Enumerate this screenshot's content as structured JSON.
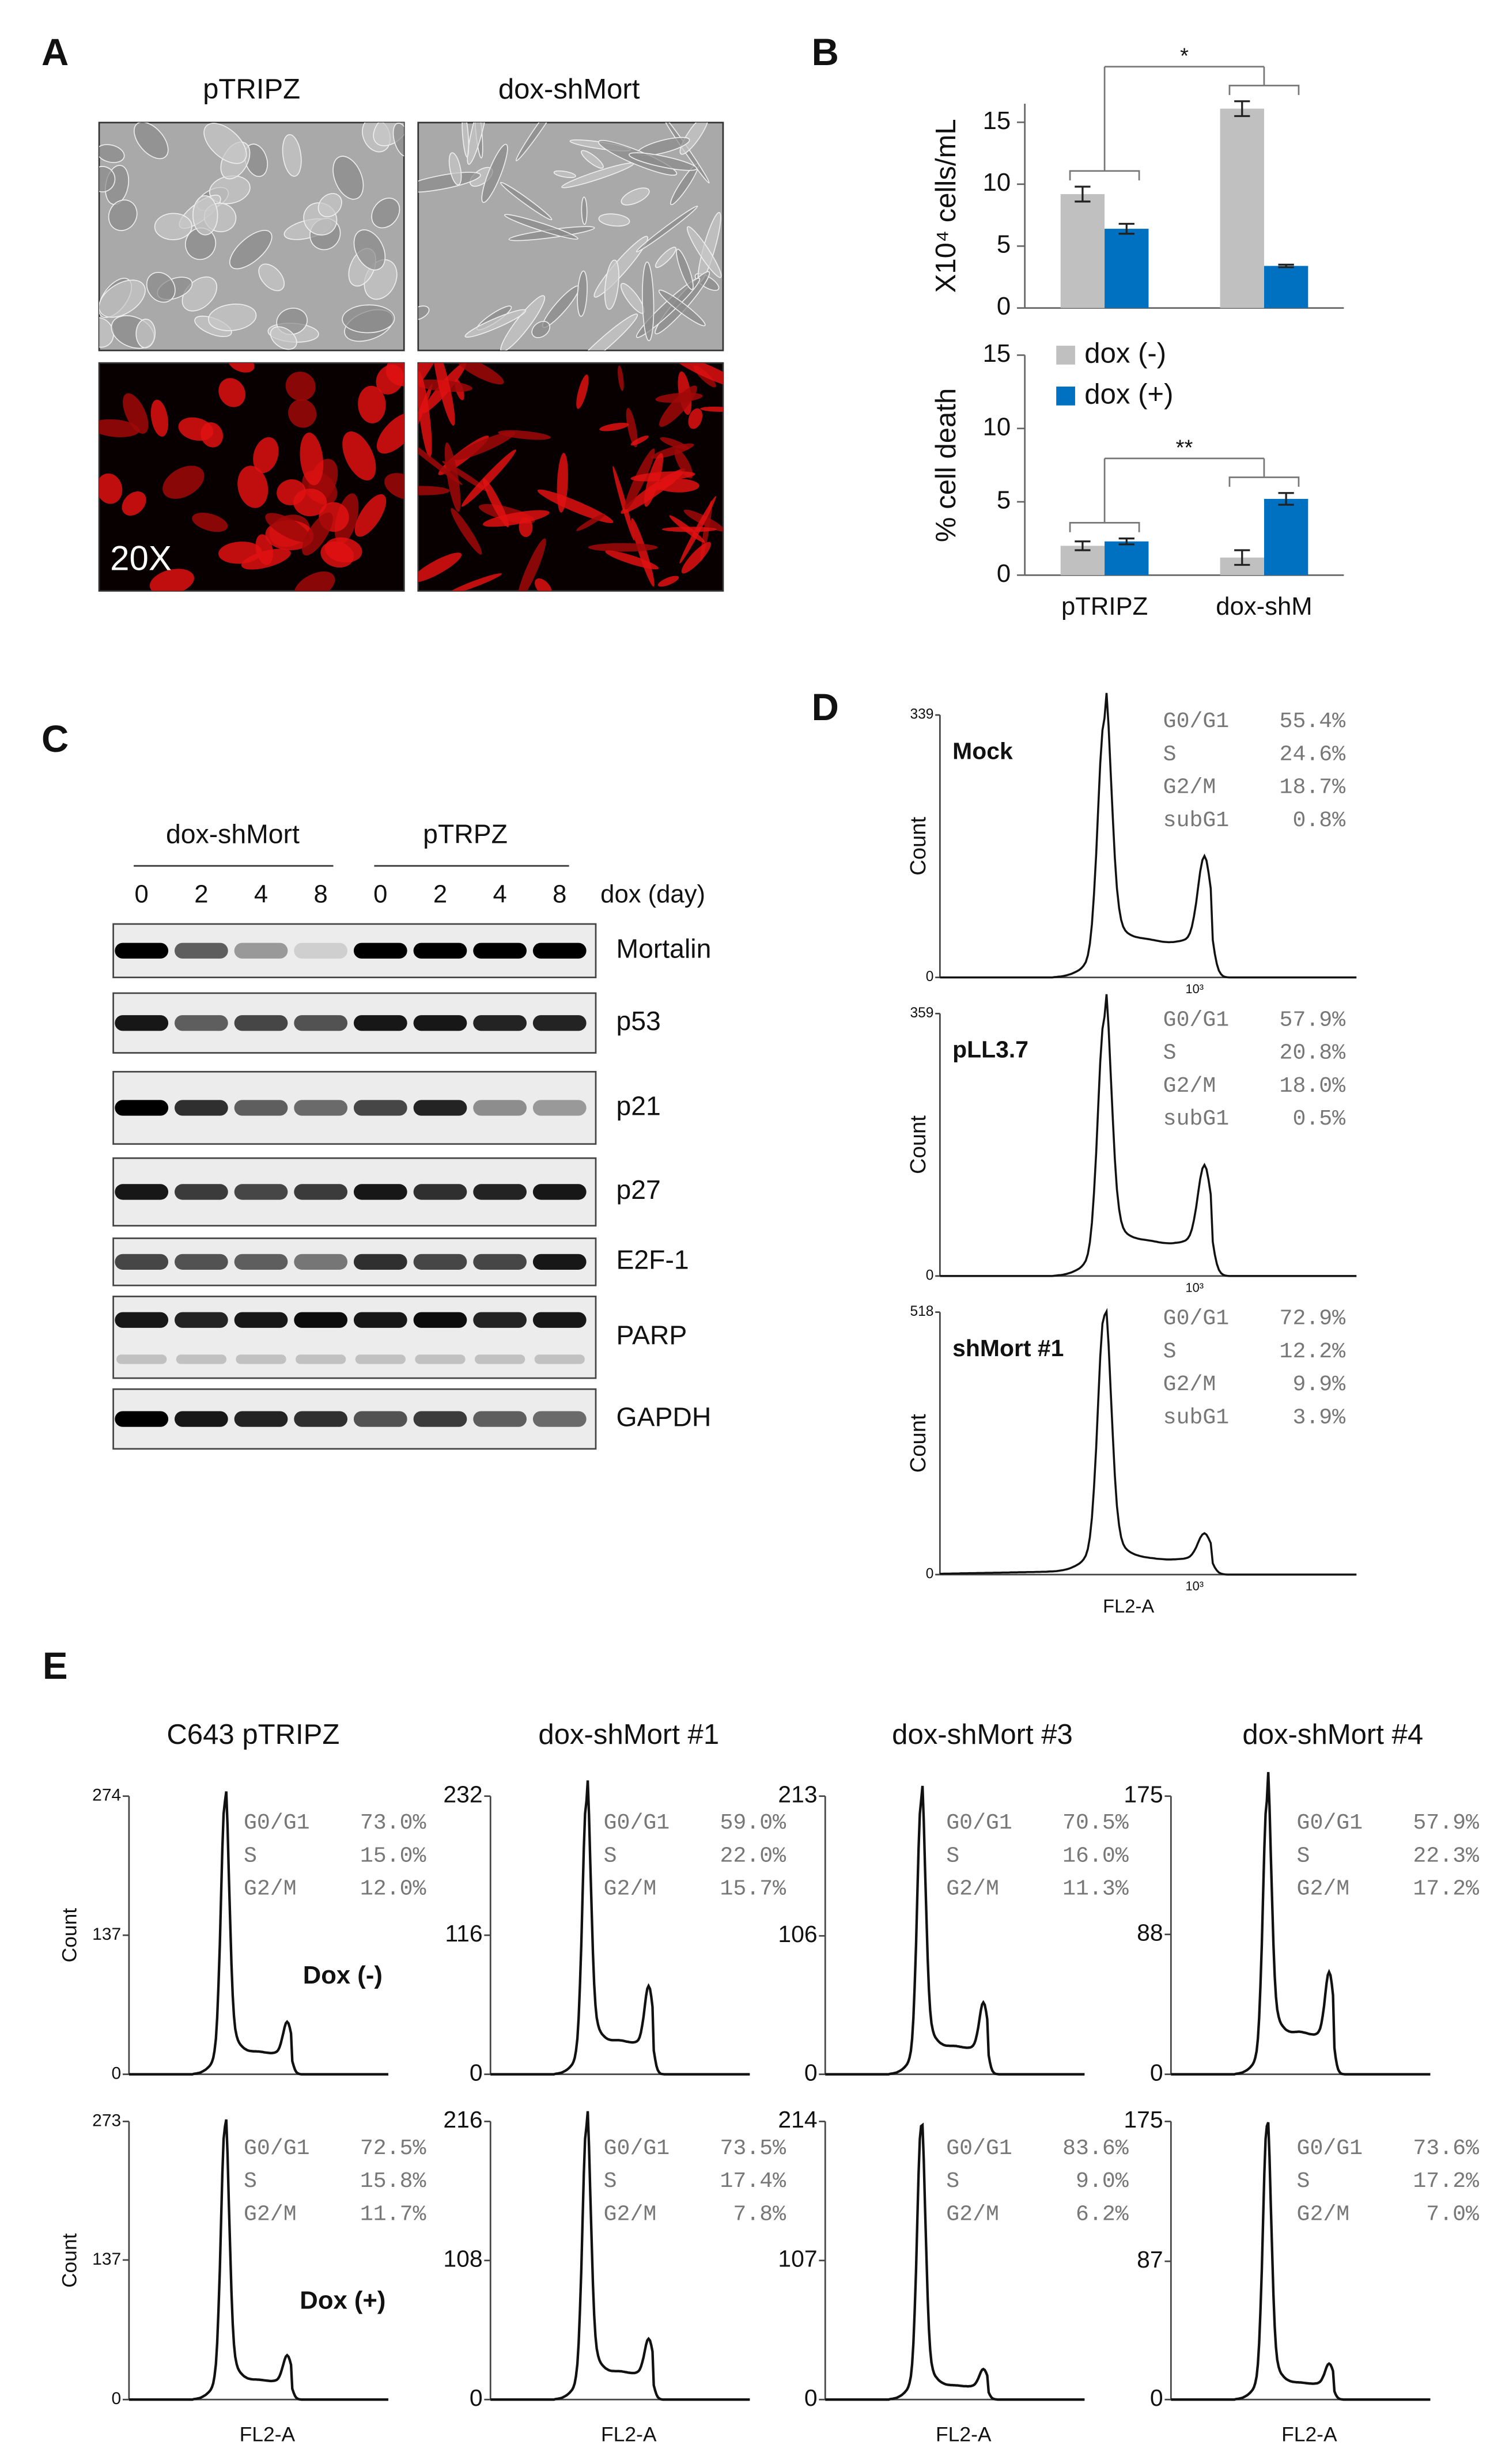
{
  "panel_a": {
    "label": "A",
    "columns": [
      "pTRIPZ",
      "dox-shMort"
    ],
    "magnification": "20X"
  },
  "panel_b_label": "B",
  "chart_data": [
    {
      "type": "bar",
      "y_label": "X10⁴ cells/mL",
      "categories": [
        null,
        null
      ],
      "series": [
        {
          "color": "#c0c0c0",
          "values": [
            9.2,
            16.1
          ],
          "errors": [
            0.6,
            0.6
          ]
        },
        {
          "color": "#0070c0",
          "values": [
            6.4,
            3.4
          ],
          "errors": [
            0.4,
            0.1
          ]
        }
      ],
      "ylim": [
        0,
        16.5
      ],
      "yticks": [
        0,
        5,
        10,
        15
      ],
      "significance": "*",
      "legend": false
    },
    {
      "type": "bar",
      "y_label": "% cell death",
      "categories": [
        "pTRIPZ",
        "dox-shM"
      ],
      "series": [
        {
          "name": "dox (-)",
          "color": "#c0c0c0",
          "values": [
            2.0,
            1.2
          ],
          "errors": [
            0.3,
            0.5
          ]
        },
        {
          "name": "dox (+)",
          "color": "#0070c0",
          "values": [
            2.3,
            5.2
          ],
          "errors": [
            0.2,
            0.4
          ]
        }
      ],
      "ylim": [
        0,
        15
      ],
      "yticks": [
        0,
        5,
        10,
        15
      ],
      "significance": "**",
      "legend": true
    }
  ],
  "panel_c": {
    "label": "C",
    "groups": [
      "dox-shMort",
      "pTRPZ"
    ],
    "lanes": [
      "0",
      "2",
      "4",
      "8",
      "0",
      "2",
      "4",
      "8"
    ],
    "lanes_title": "dox (day)",
    "proteins": [
      "Mortalin",
      "p53",
      "p21",
      "p27",
      "E2F-1",
      "PARP",
      "GAPDH"
    ]
  },
  "panel_d": {
    "label": "D",
    "y_label": "Count",
    "x_label": "FL2-A",
    "x_tick": "10³",
    "plots": [
      {
        "name": "Mock",
        "ylim": [
          0,
          339
        ],
        "yticks": [
          0,
          339
        ],
        "stats": [
          [
            "G0/G1",
            "55.4%"
          ],
          [
            "S",
            "24.6%"
          ],
          [
            "G2/M",
            "18.7%"
          ],
          [
            "subG1",
            "0.8%"
          ]
        ]
      },
      {
        "name": "pLL3.7",
        "ylim": [
          0,
          359
        ],
        "yticks": [
          0,
          359
        ],
        "stats": [
          [
            "G0/G1",
            "57.9%"
          ],
          [
            "S",
            "20.8%"
          ],
          [
            "G2/M",
            "18.0%"
          ],
          [
            "subG1",
            "0.5%"
          ]
        ]
      },
      {
        "name": "shMort #1",
        "ylim": [
          0,
          518
        ],
        "yticks": [
          0,
          518
        ],
        "stats": [
          [
            "G0/G1",
            "72.9%"
          ],
          [
            "S",
            "12.2%"
          ],
          [
            "G2/M",
            "9.9%"
          ],
          [
            "subG1",
            "3.9%"
          ]
        ]
      }
    ]
  },
  "panel_e": {
    "label": "E",
    "y_label": "Count",
    "x_label": "FL2-A",
    "conditions": [
      "Dox (-)",
      "Dox (+)"
    ],
    "columns": [
      {
        "title": "C643 pTRIPZ",
        "plots": [
          {
            "ylim": [
              0,
              274
            ],
            "yticks": [
              0,
              137,
              274
            ],
            "stats": [
              [
                "G0/G1",
                "73.0%"
              ],
              [
                "S",
                "15.0%"
              ],
              [
                "G2/M",
                "12.0%"
              ]
            ]
          },
          {
            "ylim": [
              0,
              273
            ],
            "yticks": [
              0,
              137,
              273
            ],
            "stats": [
              [
                "G0/G1",
                "72.5%"
              ],
              [
                "S",
                "15.8%"
              ],
              [
                "G2/M",
                "11.7%"
              ]
            ]
          }
        ]
      },
      {
        "title": "dox-shMort #1",
        "plots": [
          {
            "ylim": [
              0,
              232
            ],
            "yticks": [
              0,
              116,
              232
            ],
            "stats": [
              [
                "G0/G1",
                "59.0%"
              ],
              [
                "S",
                "22.0%"
              ],
              [
                "G2/M",
                "15.7%"
              ]
            ]
          },
          {
            "ylim": [
              0,
              216
            ],
            "yticks": [
              0,
              108,
              216
            ],
            "stats": [
              [
                "G0/G1",
                "73.5%"
              ],
              [
                "S",
                "17.4%"
              ],
              [
                "G2/M",
                "7.8%"
              ]
            ]
          }
        ]
      },
      {
        "title": "dox-shMort #3",
        "plots": [
          {
            "ylim": [
              0,
              213
            ],
            "yticks": [
              0,
              106,
              213
            ],
            "stats": [
              [
                "G0/G1",
                "70.5%"
              ],
              [
                "S",
                "16.0%"
              ],
              [
                "G2/M",
                "11.3%"
              ]
            ]
          },
          {
            "ylim": [
              0,
              214
            ],
            "yticks": [
              0,
              107,
              214
            ],
            "stats": [
              [
                "G0/G1",
                "83.6%"
              ],
              [
                "S",
                "9.0%"
              ],
              [
                "G2/M",
                "6.2%"
              ]
            ]
          }
        ]
      },
      {
        "title": "dox-shMort #4",
        "plots": [
          {
            "ylim": [
              0,
              175
            ],
            "yticks": [
              0,
              88,
              175
            ],
            "stats": [
              [
                "G0/G1",
                "57.9%"
              ],
              [
                "S",
                "22.3%"
              ],
              [
                "G2/M",
                "17.2%"
              ]
            ]
          },
          {
            "ylim": [
              0,
              175
            ],
            "yticks": [
              0,
              87,
              175
            ],
            "stats": [
              [
                "G0/G1",
                "73.6%"
              ],
              [
                "S",
                "17.2%"
              ],
              [
                "G2/M",
                "7.0%"
              ]
            ]
          }
        ]
      }
    ]
  }
}
